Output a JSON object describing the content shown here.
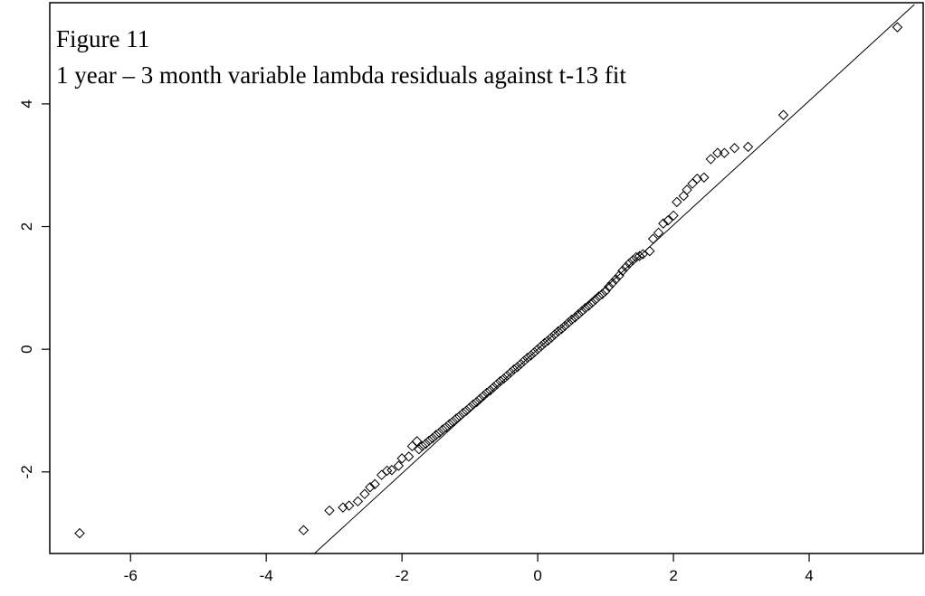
{
  "chart_data": {
    "type": "scatter",
    "title": "Figure 11",
    "subtitle": "1 year –  3 month variable lambda residuals against t-13 fit",
    "xlim": [
      -7.19,
      5.68
    ],
    "ylim": [
      -3.33,
      5.65
    ],
    "xticks": [
      -6,
      -4,
      -2,
      0,
      2,
      4
    ],
    "yticks": [
      -2,
      0,
      2,
      4
    ],
    "series": [
      {
        "type": "scatter",
        "color": "#000000",
        "x": [
          -6.75,
          -3.45,
          -3.07,
          -2.87,
          -2.78,
          -2.65,
          -2.55,
          -2.47,
          -2.4,
          -2.3,
          -2.22,
          -2.15,
          -2.05,
          -2.0,
          -1.9,
          -1.85,
          -1.78,
          -1.75,
          -1.7,
          -1.65,
          -1.6,
          -1.55,
          -1.5,
          -1.45,
          -1.4,
          -1.35,
          -1.3,
          -1.25,
          -1.2,
          -1.15,
          -1.1,
          -1.05,
          -1.0,
          -0.95,
          -0.9,
          -0.85,
          -0.8,
          -0.75,
          -0.7,
          -0.65,
          -0.6,
          -0.55,
          -0.5,
          -0.45,
          -0.4,
          -0.35,
          -0.3,
          -0.25,
          -0.2,
          -0.15,
          -0.1,
          -0.05,
          0,
          0.05,
          0.1,
          0.15,
          0.2,
          0.25,
          0.3,
          0.35,
          0.4,
          0.45,
          0.5,
          0.55,
          0.6,
          0.65,
          0.7,
          0.75,
          0.8,
          0.85,
          0.9,
          0.95,
          1.0,
          1.05,
          1.1,
          1.15,
          1.2,
          1.25,
          1.3,
          1.35,
          1.4,
          1.45,
          1.5,
          1.55,
          1.65,
          1.7,
          1.78,
          1.85,
          1.92,
          2.0,
          2.05,
          2.15,
          2.2,
          2.28,
          2.35,
          2.45,
          2.55,
          2.65,
          2.75,
          2.9,
          3.1,
          3.62,
          5.3
        ],
        "values": [
          -3.0,
          -2.95,
          -2.63,
          -2.58,
          -2.55,
          -2.48,
          -2.36,
          -2.25,
          -2.2,
          -2.05,
          -1.98,
          -1.97,
          -1.9,
          -1.78,
          -1.75,
          -1.58,
          -1.5,
          -1.63,
          -1.58,
          -1.54,
          -1.49,
          -1.45,
          -1.4,
          -1.36,
          -1.31,
          -1.27,
          -1.22,
          -1.18,
          -1.13,
          -1.09,
          -1.04,
          -1.0,
          -0.95,
          -0.9,
          -0.86,
          -0.81,
          -0.76,
          -0.71,
          -0.67,
          -0.62,
          -0.57,
          -0.52,
          -0.48,
          -0.43,
          -0.38,
          -0.33,
          -0.29,
          -0.24,
          -0.19,
          -0.14,
          -0.1,
          -0.05,
          0,
          0.05,
          0.1,
          0.14,
          0.19,
          0.24,
          0.29,
          0.33,
          0.38,
          0.43,
          0.48,
          0.52,
          0.57,
          0.62,
          0.67,
          0.71,
          0.76,
          0.81,
          0.86,
          0.9,
          0.95,
          1.02,
          1.08,
          1.14,
          1.2,
          1.28,
          1.34,
          1.4,
          1.45,
          1.5,
          1.52,
          1.55,
          1.6,
          1.8,
          1.9,
          2.05,
          2.1,
          2.18,
          2.4,
          2.5,
          2.6,
          2.7,
          2.78,
          2.8,
          3.1,
          3.2,
          3.2,
          3.28,
          3.3,
          3.82,
          5.25
        ]
      },
      {
        "type": "line",
        "color": "#000000",
        "x": [
          -3.29,
          5.55
        ],
        "values": [
          -3.33,
          5.62
        ]
      }
    ]
  }
}
